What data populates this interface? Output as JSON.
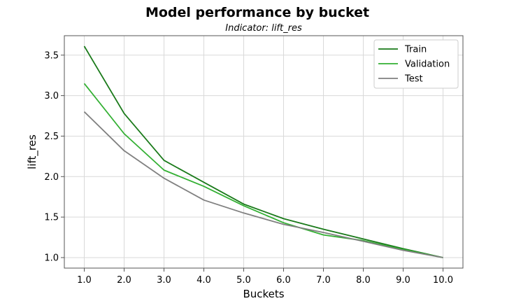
{
  "chart_data": {
    "type": "line",
    "title": "Model performance by bucket",
    "subtitle": "Indicator: lift_res",
    "xlabel": "Buckets",
    "ylabel": "lift_res",
    "x": [
      1.0,
      2.0,
      3.0,
      4.0,
      5.0,
      6.0,
      7.0,
      8.0,
      9.0,
      10.0
    ],
    "x_tick_labels": [
      "1.0",
      "2.0",
      "3.0",
      "4.0",
      "5.0",
      "6.0",
      "7.0",
      "8.0",
      "9.0",
      "10.0"
    ],
    "xlim": [
      0.5,
      10.5
    ],
    "ylim": [
      0.87,
      3.74
    ],
    "y_ticks": [
      1.0,
      1.5,
      2.0,
      2.5,
      3.0,
      3.5
    ],
    "y_tick_labels": [
      "1.0",
      "1.5",
      "2.0",
      "2.5",
      "3.0",
      "3.5"
    ],
    "grid": true,
    "legend_position": "top-right",
    "series": [
      {
        "name": "Train",
        "color": "#1a7a1a",
        "values": [
          3.61,
          2.78,
          2.2,
          1.93,
          1.66,
          1.48,
          1.35,
          1.23,
          1.11,
          1.0
        ]
      },
      {
        "name": "Validation",
        "color": "#33b033",
        "values": [
          3.15,
          2.53,
          2.08,
          1.88,
          1.64,
          1.43,
          1.28,
          1.21,
          1.1,
          1.0
        ]
      },
      {
        "name": "Test",
        "color": "#808080",
        "values": [
          2.8,
          2.32,
          1.98,
          1.71,
          1.55,
          1.41,
          1.31,
          1.2,
          1.09,
          1.0
        ]
      }
    ]
  }
}
